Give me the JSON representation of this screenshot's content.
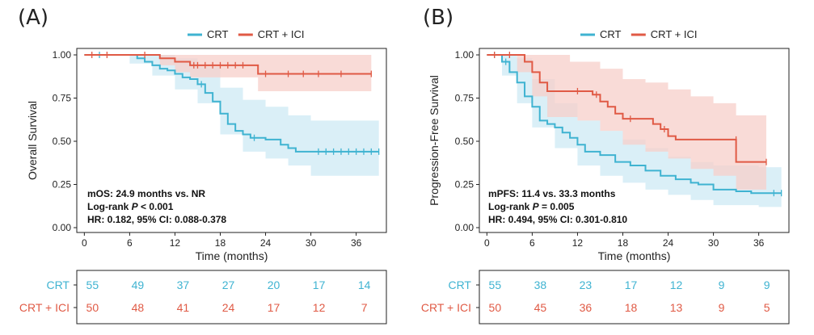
{
  "chart_data": [
    {
      "type": "line",
      "subtype": "kaplan-meier",
      "panel": "(A)",
      "xlabel": "Time (months)",
      "ylabel": "Overall Survival",
      "xlim": [
        -1,
        40
      ],
      "ylim": [
        0,
        1
      ],
      "xticks": [
        "0",
        "6",
        "12",
        "18",
        "24",
        "30",
        "36"
      ],
      "yticks": [
        "0.00",
        "0.25",
        "0.50",
        "0.75",
        "1.00"
      ],
      "legend": [
        "CRT",
        "CRT + ICI"
      ],
      "annotations": {
        "line1": "mOS: 24.9 months vs. NR",
        "line2_prefix": "Log-rank ",
        "line2_p": "P",
        "line2_suffix": " < 0.001",
        "line3": "HR: 0.182, 95% CI: 0.088-0.378"
      },
      "series": [
        {
          "name": "CRT",
          "color": "#3fb3d1",
          "band": "#cde9f4",
          "steps": [
            [
              0,
              1.0
            ],
            [
              7,
              0.98
            ],
            [
              8,
              0.96
            ],
            [
              9,
              0.94
            ],
            [
              10,
              0.92
            ],
            [
              11,
              0.91
            ],
            [
              12,
              0.89
            ],
            [
              13,
              0.87
            ],
            [
              14,
              0.86
            ],
            [
              15,
              0.83
            ],
            [
              16,
              0.78
            ],
            [
              17,
              0.73
            ],
            [
              18,
              0.66
            ],
            [
              19,
              0.6
            ],
            [
              20,
              0.56
            ],
            [
              21,
              0.54
            ],
            [
              22,
              0.52
            ],
            [
              24,
              0.51
            ],
            [
              26,
              0.48
            ],
            [
              27,
              0.46
            ],
            [
              28,
              0.44
            ],
            [
              39,
              0.44
            ]
          ],
          "censor": [
            [
              2,
              1.0
            ],
            [
              15.5,
              0.83
            ],
            [
              22.5,
              0.52
            ],
            [
              31,
              0.44
            ],
            [
              32,
              0.44
            ],
            [
              33,
              0.44
            ],
            [
              34,
              0.44
            ],
            [
              35,
              0.44
            ],
            [
              36,
              0.44
            ],
            [
              37,
              0.44
            ],
            [
              38,
              0.44
            ],
            [
              39,
              0.44
            ]
          ],
          "ci_upper": [
            [
              0,
              1.0
            ],
            [
              9,
              1.0
            ],
            [
              12,
              0.98
            ],
            [
              15,
              0.93
            ],
            [
              18,
              0.81
            ],
            [
              21,
              0.74
            ],
            [
              24,
              0.7
            ],
            [
              27,
              0.65
            ],
            [
              30,
              0.62
            ],
            [
              39,
              0.62
            ]
          ],
          "ci_lower": [
            [
              0,
              1.0
            ],
            [
              6,
              0.95
            ],
            [
              9,
              0.88
            ],
            [
              12,
              0.8
            ],
            [
              15,
              0.72
            ],
            [
              18,
              0.54
            ],
            [
              21,
              0.44
            ],
            [
              24,
              0.4
            ],
            [
              27,
              0.36
            ],
            [
              30,
              0.3
            ],
            [
              39,
              0.3
            ]
          ]
        },
        {
          "name": "CRT + ICI",
          "color": "#e05a45",
          "band": "#f7cfc9",
          "steps": [
            [
              0,
              1.0
            ],
            [
              10,
              0.98
            ],
            [
              12,
              0.96
            ],
            [
              14,
              0.94
            ],
            [
              23,
              0.89
            ],
            [
              38,
              0.89
            ]
          ],
          "censor": [
            [
              1,
              1.0
            ],
            [
              3,
              1.0
            ],
            [
              8,
              1.0
            ],
            [
              14.5,
              0.94
            ],
            [
              15,
              0.94
            ],
            [
              16,
              0.94
            ],
            [
              17,
              0.94
            ],
            [
              18,
              0.94
            ],
            [
              19,
              0.94
            ],
            [
              20,
              0.94
            ],
            [
              21,
              0.94
            ],
            [
              24,
              0.89
            ],
            [
              27,
              0.89
            ],
            [
              29,
              0.89
            ],
            [
              31,
              0.89
            ],
            [
              34,
              0.89
            ],
            [
              38,
              0.89
            ]
          ],
          "ci_upper": [
            [
              0,
              1.0
            ],
            [
              38,
              1.0
            ]
          ],
          "ci_lower": [
            [
              0,
              1.0
            ],
            [
              10,
              0.94
            ],
            [
              12,
              0.9
            ],
            [
              14,
              0.87
            ],
            [
              23,
              0.79
            ],
            [
              38,
              0.79
            ]
          ]
        }
      ],
      "risk_table": {
        "rows": [
          {
            "label": "CRT",
            "color": "#3fb3d1",
            "values": [
              "55",
              "49",
              "37",
              "27",
              "20",
              "17",
              "14"
            ]
          },
          {
            "label": "CRT + ICI",
            "color": "#e05a45",
            "values": [
              "50",
              "48",
              "41",
              "24",
              "17",
              "12",
              "7"
            ]
          }
        ]
      }
    },
    {
      "type": "line",
      "subtype": "kaplan-meier",
      "panel": "(B)",
      "xlabel": "Time (months)",
      "ylabel": "Progression-Free Survival",
      "xlim": [
        -1,
        40
      ],
      "ylim": [
        0,
        1
      ],
      "xticks": [
        "0",
        "6",
        "12",
        "18",
        "24",
        "30",
        "36"
      ],
      "yticks": [
        "0.00",
        "0.25",
        "0.50",
        "0.75",
        "1.00"
      ],
      "legend": [
        "CRT",
        "CRT + ICI"
      ],
      "annotations": {
        "line1": "mPFS: 11.4 vs. 33.3 months",
        "line2_prefix": "Log-rank ",
        "line2_p": "P",
        "line2_suffix": " = 0.005",
        "line3": "HR: 0.494, 95% CI: 0.301-0.810"
      },
      "series": [
        {
          "name": "CRT",
          "color": "#3fb3d1",
          "band": "#cde9f4",
          "steps": [
            [
              0,
              1.0
            ],
            [
              2,
              0.96
            ],
            [
              3,
              0.9
            ],
            [
              4,
              0.84
            ],
            [
              5,
              0.76
            ],
            [
              6,
              0.7
            ],
            [
              7,
              0.62
            ],
            [
              8,
              0.6
            ],
            [
              9,
              0.58
            ],
            [
              10,
              0.55
            ],
            [
              11,
              0.52
            ],
            [
              12,
              0.48
            ],
            [
              13,
              0.44
            ],
            [
              15,
              0.42
            ],
            [
              17,
              0.38
            ],
            [
              19,
              0.36
            ],
            [
              21,
              0.33
            ],
            [
              23,
              0.3
            ],
            [
              25,
              0.28
            ],
            [
              27,
              0.26
            ],
            [
              28,
              0.25
            ],
            [
              30,
              0.22
            ],
            [
              33,
              0.21
            ],
            [
              35,
              0.2
            ],
            [
              39,
              0.2
            ]
          ],
          "censor": [
            [
              1,
              1.0
            ],
            [
              2.5,
              0.96
            ],
            [
              38,
              0.2
            ],
            [
              39,
              0.2
            ]
          ],
          "ci_upper": [
            [
              0,
              1.0
            ],
            [
              4,
              0.98
            ],
            [
              6,
              0.86
            ],
            [
              9,
              0.72
            ],
            [
              12,
              0.62
            ],
            [
              15,
              0.56
            ],
            [
              18,
              0.51
            ],
            [
              21,
              0.46
            ],
            [
              24,
              0.41
            ],
            [
              27,
              0.38
            ],
            [
              30,
              0.36
            ],
            [
              36,
              0.35
            ],
            [
              39,
              0.35
            ]
          ],
          "ci_lower": [
            [
              0,
              1.0
            ],
            [
              2,
              0.88
            ],
            [
              4,
              0.72
            ],
            [
              6,
              0.58
            ],
            [
              9,
              0.46
            ],
            [
              12,
              0.36
            ],
            [
              15,
              0.3
            ],
            [
              18,
              0.26
            ],
            [
              21,
              0.22
            ],
            [
              24,
              0.19
            ],
            [
              27,
              0.16
            ],
            [
              30,
              0.13
            ],
            [
              36,
              0.12
            ],
            [
              39,
              0.12
            ]
          ]
        },
        {
          "name": "CRT + ICI",
          "color": "#e05a45",
          "band": "#f7cfc9",
          "steps": [
            [
              0,
              1.0
            ],
            [
              5,
              0.96
            ],
            [
              6,
              0.9
            ],
            [
              7,
              0.84
            ],
            [
              8,
              0.79
            ],
            [
              14,
              0.77
            ],
            [
              15,
              0.73
            ],
            [
              16,
              0.7
            ],
            [
              17,
              0.66
            ],
            [
              18,
              0.63
            ],
            [
              22,
              0.6
            ],
            [
              23,
              0.57
            ],
            [
              24,
              0.53
            ],
            [
              25,
              0.51
            ],
            [
              33,
              0.38
            ],
            [
              37,
              0.38
            ]
          ],
          "censor": [
            [
              1,
              1.0
            ],
            [
              3,
              1.0
            ],
            [
              12,
              0.79
            ],
            [
              14.5,
              0.77
            ],
            [
              19,
              0.63
            ],
            [
              23.5,
              0.57
            ],
            [
              33,
              0.51
            ],
            [
              37,
              0.38
            ]
          ],
          "ci_upper": [
            [
              0,
              1.0
            ],
            [
              8,
              1.0
            ],
            [
              11,
              0.96
            ],
            [
              15,
              0.92
            ],
            [
              18,
              0.86
            ],
            [
              21,
              0.84
            ],
            [
              24,
              0.8
            ],
            [
              27,
              0.76
            ],
            [
              30,
              0.72
            ],
            [
              33,
              0.65
            ],
            [
              37,
              0.65
            ]
          ],
          "ci_lower": [
            [
              0,
              1.0
            ],
            [
              4,
              0.9
            ],
            [
              6,
              0.76
            ],
            [
              8,
              0.64
            ],
            [
              12,
              0.62
            ],
            [
              15,
              0.56
            ],
            [
              18,
              0.48
            ],
            [
              21,
              0.44
            ],
            [
              24,
              0.4
            ],
            [
              27,
              0.34
            ],
            [
              30,
              0.3
            ],
            [
              33,
              0.22
            ],
            [
              37,
              0.22
            ]
          ]
        }
      ],
      "risk_table": {
        "rows": [
          {
            "label": "CRT",
            "color": "#3fb3d1",
            "values": [
              "55",
              "38",
              "23",
              "17",
              "12",
              "9",
              "9"
            ]
          },
          {
            "label": "CRT + ICI",
            "color": "#e05a45",
            "values": [
              "50",
              "45",
              "36",
              "18",
              "13",
              "9",
              "5"
            ]
          }
        ]
      }
    }
  ]
}
